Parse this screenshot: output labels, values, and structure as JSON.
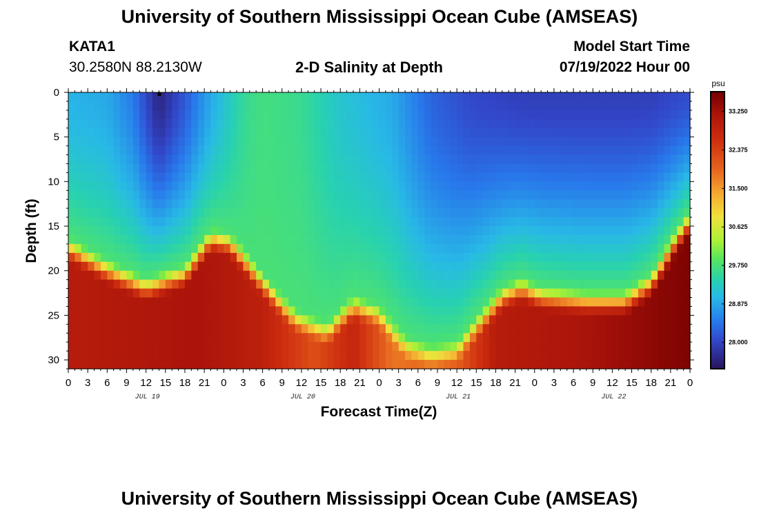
{
  "page": {
    "title": "University of Southern Mississippi Ocean Cube (AMSEAS)",
    "station": "KATA1",
    "coordinates": "30.2580N  88.2130W",
    "subtitle": "2-D Salinity at Depth",
    "model_start_label": "Model Start Time",
    "model_start_value": "07/19/2022 Hour 00",
    "footer_title": "University of Southern Mississippi Ocean Cube (AMSEAS)"
  },
  "chart_data": {
    "type": "heatmap",
    "title": "2-D Salinity at Depth",
    "xlabel": "Forecast Time(Z)",
    "ylabel": "Depth (ft)",
    "x_range_hours": [
      0,
      96
    ],
    "y_range_ft": [
      0,
      31
    ],
    "y_ticks": [
      0,
      5,
      10,
      15,
      20,
      25,
      30
    ],
    "x_tick_labels": [
      "0",
      "3",
      "6",
      "9",
      "12",
      "15",
      "18",
      "21",
      "0",
      "3",
      "6",
      "9",
      "12",
      "15",
      "18",
      "21",
      "0",
      "3",
      "6",
      "9",
      "12",
      "15",
      "18",
      "21",
      "0",
      "3",
      "6",
      "9",
      "12",
      "15",
      "18",
      "21",
      "0"
    ],
    "date_labels": [
      {
        "text": "JUL 19",
        "hour": 12
      },
      {
        "text": "JUL 20",
        "hour": 36
      },
      {
        "text": "JUL 21",
        "hour": 60
      },
      {
        "text": "JUL 22",
        "hour": 84
      }
    ],
    "colorbar": {
      "unit": "psu",
      "min": 27.4,
      "max": 33.7,
      "tick_labels": [
        "33.250",
        "32.375",
        "31.500",
        "30.625",
        "29.750",
        "28.875",
        "28.000"
      ],
      "tick_values": [
        33.25,
        32.375,
        31.5,
        30.625,
        29.75,
        28.875,
        28.0
      ]
    },
    "interface_depth_ft": [
      {
        "hour": 0,
        "depth": 16
      },
      {
        "hour": 6,
        "depth": 18.5
      },
      {
        "hour": 12,
        "depth": 20.5
      },
      {
        "hour": 18,
        "depth": 19
      },
      {
        "hour": 22,
        "depth": 15
      },
      {
        "hour": 25,
        "depth": 15.5
      },
      {
        "hour": 30,
        "depth": 20
      },
      {
        "hour": 35,
        "depth": 24
      },
      {
        "hour": 40,
        "depth": 25.5
      },
      {
        "hour": 44,
        "depth": 22.5
      },
      {
        "hour": 48,
        "depth": 23.5
      },
      {
        "hour": 52,
        "depth": 27
      },
      {
        "hour": 56,
        "depth": 28
      },
      {
        "hour": 60,
        "depth": 27.5
      },
      {
        "hour": 64,
        "depth": 24
      },
      {
        "hour": 67,
        "depth": 21.5
      },
      {
        "hour": 70,
        "depth": 20.5
      },
      {
        "hour": 73,
        "depth": 21.5
      },
      {
        "hour": 80,
        "depth": 22
      },
      {
        "hour": 86,
        "depth": 22
      },
      {
        "hour": 90,
        "depth": 20
      },
      {
        "hour": 94,
        "depth": 15
      },
      {
        "hour": 96,
        "depth": 13
      }
    ],
    "surface_salinity_psu": [
      {
        "hour": 0,
        "value": 29.0
      },
      {
        "hour": 6,
        "value": 28.9
      },
      {
        "hour": 10,
        "value": 28.5
      },
      {
        "hour": 14,
        "value": 27.6
      },
      {
        "hour": 18,
        "value": 28.2
      },
      {
        "hour": 22,
        "value": 28.9
      },
      {
        "hour": 27,
        "value": 29.55
      },
      {
        "hour": 30,
        "value": 29.7
      },
      {
        "hour": 36,
        "value": 29.6
      },
      {
        "hour": 42,
        "value": 29.2
      },
      {
        "hour": 50,
        "value": 28.9
      },
      {
        "hour": 56,
        "value": 28.3
      },
      {
        "hour": 62,
        "value": 28.05
      },
      {
        "hour": 70,
        "value": 27.95
      },
      {
        "hour": 80,
        "value": 27.95
      },
      {
        "hour": 90,
        "value": 27.95
      },
      {
        "hour": 96,
        "value": 28.1
      }
    ],
    "bottom_salinity_psu": [
      {
        "hour": 0,
        "value": 33.0
      },
      {
        "hour": 20,
        "value": 33.2
      },
      {
        "hour": 30,
        "value": 32.9
      },
      {
        "hour": 38,
        "value": 32.2
      },
      {
        "hour": 44,
        "value": 32.8
      },
      {
        "hour": 50,
        "value": 31.8
      },
      {
        "hour": 60,
        "value": 32.0
      },
      {
        "hour": 66,
        "value": 33.0
      },
      {
        "hour": 80,
        "value": 33.2
      },
      {
        "hour": 96,
        "value": 33.6
      }
    ]
  }
}
